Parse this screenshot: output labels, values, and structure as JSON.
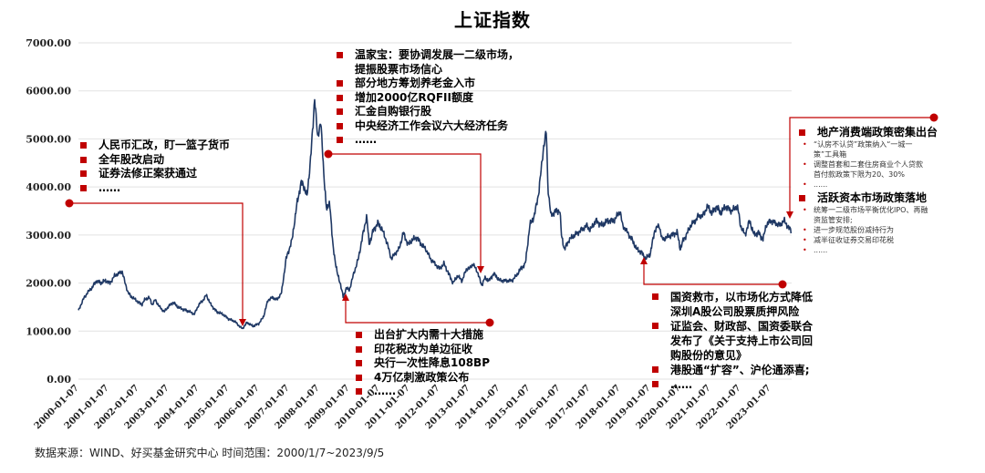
{
  "chart_data": {
    "type": "line",
    "title": "上证指数",
    "source": "数据来源：WIND、好买基金研究中心   时间范围：2000/1/7~2023/9/5",
    "ylim": [
      0,
      7000
    ],
    "y_ticks": [
      "0.00",
      "1000.00",
      "2000.00",
      "3000.00",
      "4000.00",
      "5000.00",
      "6000.00",
      "7000.00"
    ],
    "x_ticks": [
      "2000-01-07",
      "2001-01-07",
      "2002-01-07",
      "2003-01-07",
      "2004-01-07",
      "2005-01-07",
      "2006-01-07",
      "2007-01-07",
      "2008-01-07",
      "2009-01-07",
      "2010-01-07",
      "2011-01-07",
      "2012-01-07",
      "2013-01-07",
      "2014-01-07",
      "2015-01-07",
      "2016-01-07",
      "2017-01-07",
      "2018-01-07",
      "2019-01-07",
      "2020-01-07",
      "2021-01-07",
      "2022-01-07",
      "2023-01-07"
    ],
    "line_color": "#1f3864",
    "accent_color": "#c00000",
    "series": [
      {
        "x": [
          2000.0,
          2000.15,
          2000.3,
          2000.45,
          2000.6,
          2000.75,
          2000.9,
          2001.05,
          2001.2,
          2001.35,
          2001.45,
          2001.55,
          2001.65,
          2001.75,
          2001.9,
          2002.0,
          2002.1,
          2002.2,
          2002.35,
          2002.45,
          2002.55,
          2002.7,
          2002.85,
          2003.0,
          2003.15,
          2003.3,
          2003.5,
          2003.7,
          2003.85,
          2004.0,
          2004.15,
          2004.25,
          2004.4,
          2004.6,
          2004.8,
          2005.0,
          2005.2,
          2005.35,
          2005.45,
          2005.6,
          2005.8,
          2006.0,
          2006.15,
          2006.3,
          2006.45,
          2006.6,
          2006.75,
          2006.9,
          2007.0,
          2007.1,
          2007.25,
          2007.4,
          2007.5,
          2007.6,
          2007.7,
          2007.8,
          2007.85,
          2007.95,
          2008.05,
          2008.15,
          2008.25,
          2008.35,
          2008.45,
          2008.6,
          2008.7,
          2008.8,
          2008.9,
          2009.0,
          2009.15,
          2009.3,
          2009.45,
          2009.58,
          2009.66,
          2009.8,
          2009.95,
          2010.1,
          2010.25,
          2010.4,
          2010.5,
          2010.65,
          2010.8,
          2010.95,
          2011.1,
          2011.25,
          2011.4,
          2011.55,
          2011.7,
          2011.85,
          2012.0,
          2012.15,
          2012.3,
          2012.45,
          2012.6,
          2012.75,
          2012.9,
          2013.0,
          2013.1,
          2013.25,
          2013.4,
          2013.5,
          2013.65,
          2013.8,
          2014.0,
          2014.2,
          2014.4,
          2014.55,
          2014.7,
          2014.85,
          2015.0,
          2015.15,
          2015.3,
          2015.4,
          2015.45,
          2015.55,
          2015.6,
          2015.7,
          2015.85,
          2016.0,
          2016.05,
          2016.15,
          2016.3,
          2016.5,
          2016.7,
          2016.9,
          2017.0,
          2017.2,
          2017.4,
          2017.6,
          2017.8,
          2018.0,
          2018.08,
          2018.2,
          2018.4,
          2018.55,
          2018.7,
          2018.85,
          2019.0,
          2019.15,
          2019.3,
          2019.4,
          2019.55,
          2019.7,
          2019.9,
          2020.0,
          2020.1,
          2020.2,
          2020.35,
          2020.5,
          2020.6,
          2020.75,
          2020.9,
          2021.05,
          2021.2,
          2021.35,
          2021.5,
          2021.7,
          2021.9,
          2022.0,
          2022.15,
          2022.3,
          2022.45,
          2022.6,
          2022.75,
          2022.85,
          2023.0,
          2023.15,
          2023.3,
          2023.45,
          2023.6,
          2023.68
        ],
        "y": [
          1420,
          1650,
          1800,
          1900,
          2050,
          2000,
          2050,
          2000,
          2150,
          2200,
          2250,
          2000,
          1800,
          1720,
          1650,
          1600,
          1550,
          1650,
          1700,
          1550,
          1650,
          1500,
          1400,
          1520,
          1600,
          1500,
          1450,
          1400,
          1350,
          1550,
          1650,
          1750,
          1550,
          1400,
          1350,
          1250,
          1200,
          1100,
          1050,
          1180,
          1100,
          1160,
          1300,
          1650,
          1700,
          1650,
          1800,
          2500,
          2700,
          2900,
          3600,
          4100,
          4000,
          3800,
          4500,
          5300,
          5900,
          5000,
          5400,
          4300,
          3500,
          3700,
          2800,
          2200,
          2000,
          1700,
          1900,
          1850,
          2200,
          2500,
          3000,
          3400,
          2800,
          3100,
          3250,
          3100,
          2850,
          2500,
          2600,
          2700,
          3050,
          2800,
          2900,
          2950,
          2800,
          2700,
          2500,
          2400,
          2300,
          2400,
          2200,
          2000,
          2150,
          2050,
          2300,
          2300,
          2400,
          2250,
          1950,
          2100,
          2050,
          2200,
          2050,
          2050,
          2050,
          2150,
          2300,
          2400,
          3200,
          3400,
          3900,
          4500,
          4800,
          5150,
          4000,
          3400,
          3500,
          3500,
          3000,
          2700,
          2900,
          3000,
          3100,
          3200,
          3100,
          3300,
          3200,
          3300,
          3300,
          3500,
          3200,
          3100,
          2900,
          2700,
          2650,
          2500,
          2600,
          3100,
          3200,
          2900,
          2950,
          3000,
          3050,
          2700,
          2900,
          3000,
          3200,
          3300,
          3400,
          3400,
          3600,
          3450,
          3600,
          3450,
          3600,
          3500,
          3600,
          3200,
          3000,
          3300,
          3000,
          3050,
          2900,
          3200,
          3300,
          3250,
          3200,
          3300,
          3150,
          3100
        ]
      }
    ],
    "annotations": {
      "a2005": [
        "人民币汇改，盯一篮子货币",
        "全年股改启动",
        "证券法修正案获通过",
        "……"
      ],
      "a2008": [
        "温家宝：要协调发展一二级市场，",
        "提振股票市场信心",
        "部分地方筹划养老金入市",
        "增加2000亿RQFII额度",
        "汇金自购银行股",
        "中央经济工作会议六大经济任务",
        "……"
      ],
      "a2009": [
        "出台扩大内需十大措施",
        "印花税改为单边征收",
        "央行一次性降息108BP",
        "4万亿刺激政策公布",
        "……"
      ],
      "a2018": [
        "国资救市，以市场化方式降低",
        "深圳A股公司股票质押风险",
        "证监会、财政部、国资委联合",
        "发布了《关于支持上市公司回",
        "购股份的意见》",
        "港股通“扩容”、沪伦通添喜;",
        "……"
      ],
      "a2023": {
        "head1": "地产消费端政策密集出台",
        "items1": [
          "“认房不认贷”政策纳入“一城一",
          "策”工具箱",
          "调整首套和二套住房商业个人贷款",
          "首付款政策下限为20、30%",
          "......"
        ],
        "head2": "活跃资本市场政策落地",
        "items2": [
          "统筹一二级市场平衡优化IPO、再融",
          "资监管安排;",
          "进一步规范股份减持行为",
          "减半征收证券交易印花税",
          "......"
        ]
      }
    }
  }
}
